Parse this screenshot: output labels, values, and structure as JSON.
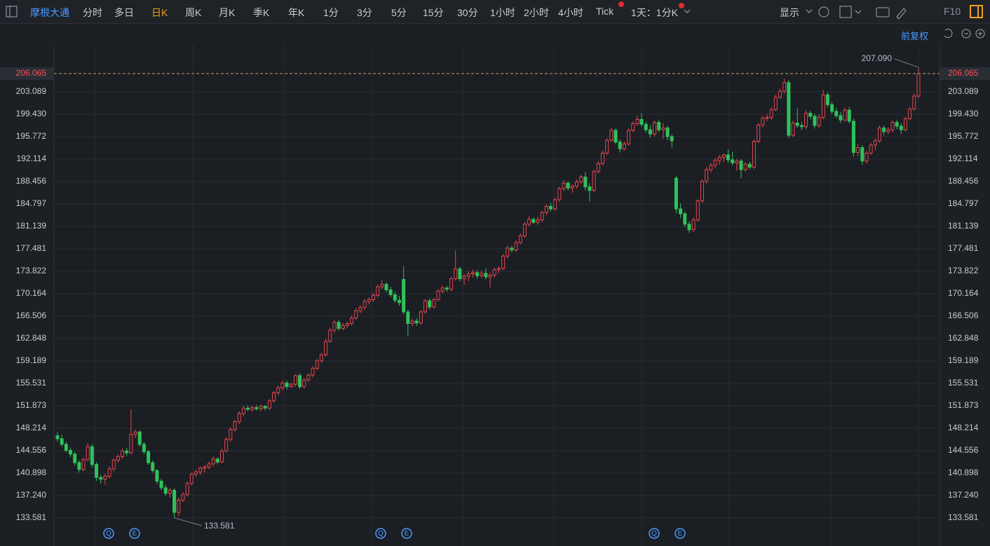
{
  "toolbar": {
    "symbol": "摩根大通",
    "periods": [
      "分时",
      "多日",
      "日K",
      "周K",
      "月K",
      "季K",
      "年K",
      "1分",
      "3分",
      "5分",
      "15分",
      "30分",
      "1小时",
      "2小时",
      "4小时",
      "Tick"
    ],
    "active_period": 2,
    "interval": "1天：1分K",
    "display": "显示",
    "f10": "F10",
    "adjust": "前复权"
  },
  "chart_data": {
    "type": "candlestick",
    "up_color": "#e8474e",
    "down_color": "#2fc25b",
    "grid": true,
    "ylim": [
      130.15,
      210.64
    ],
    "yticks": [
      133.581,
      {
        "value": 137.24,
        "label": "137.240"
      },
      140.898,
      144.556,
      148.214,
      151.873,
      155.531,
      159.189,
      162.848,
      166.506,
      170.164,
      173.822,
      177.481,
      181.139,
      184.797,
      188.456,
      192.114,
      195.772,
      {
        "value": 199.43,
        "label": "199.430"
      },
      203.089
    ],
    "last_price": 206.065,
    "annotations": [
      {
        "value": 207.09,
        "label": "207.090"
      },
      {
        "value": 133.581,
        "label": "133.581"
      }
    ],
    "events": [
      "Q",
      "E",
      "Q",
      "E",
      "Q",
      "E"
    ],
    "ohlc": [
      [
        147.0,
        147.6,
        146.0,
        146.5
      ],
      [
        146.5,
        147.2,
        145.2,
        145.6
      ],
      [
        145.6,
        146.0,
        144.3,
        144.6
      ],
      [
        144.6,
        145.1,
        143.5,
        144.0
      ],
      [
        144.0,
        144.4,
        142.1,
        142.6
      ],
      [
        142.6,
        143.0,
        141.0,
        141.5
      ],
      [
        141.5,
        143.5,
        141.2,
        143.1
      ],
      [
        143.1,
        145.8,
        142.8,
        145.2
      ],
      [
        145.2,
        145.6,
        141.8,
        142.3
      ],
      [
        142.3,
        142.7,
        139.6,
        140.2
      ],
      [
        140.2,
        140.6,
        139.2,
        139.9
      ],
      [
        139.9,
        140.8,
        139.0,
        140.4
      ],
      [
        140.4,
        142.0,
        140.0,
        141.6
      ],
      [
        141.6,
        143.4,
        141.2,
        143.0
      ],
      [
        143.0,
        144.0,
        142.6,
        143.6
      ],
      [
        143.6,
        144.9,
        143.2,
        144.5
      ],
      [
        144.5,
        145.0,
        143.7,
        144.2
      ],
      [
        144.2,
        151.3,
        144.0,
        147.2
      ],
      [
        147.2,
        148.0,
        146.6,
        147.6
      ],
      [
        147.6,
        147.9,
        145.2,
        145.6
      ],
      [
        145.6,
        146.0,
        144.0,
        144.4
      ],
      [
        144.4,
        144.7,
        142.2,
        142.6
      ],
      [
        142.6,
        143.0,
        141.0,
        141.3
      ],
      [
        141.3,
        141.6,
        139.1,
        139.6
      ],
      [
        139.6,
        140.0,
        138.1,
        138.5
      ],
      [
        138.5,
        139.0,
        137.2,
        137.6
      ],
      [
        137.6,
        138.5,
        136.9,
        138.1
      ],
      [
        138.1,
        138.4,
        133.581,
        134.5
      ],
      [
        134.5,
        136.9,
        133.9,
        136.5
      ],
      [
        136.5,
        137.8,
        136.2,
        137.4
      ],
      [
        137.4,
        139.6,
        137.1,
        139.2
      ],
      [
        139.2,
        141.0,
        138.9,
        140.7
      ],
      [
        140.7,
        141.5,
        140.3,
        141.1
      ],
      [
        141.1,
        142.0,
        140.6,
        141.7
      ],
      [
        141.7,
        142.2,
        141.0,
        141.9
      ],
      [
        141.9,
        142.8,
        141.5,
        142.4
      ],
      [
        142.4,
        143.6,
        142.0,
        143.2
      ],
      [
        143.2,
        143.5,
        142.3,
        142.7
      ],
      [
        142.7,
        144.9,
        142.5,
        144.5
      ],
      [
        144.5,
        146.8,
        144.2,
        146.4
      ],
      [
        146.4,
        148.4,
        146.0,
        148.0
      ],
      [
        148.0,
        149.6,
        147.6,
        149.3
      ],
      [
        149.3,
        151.0,
        148.9,
        150.6
      ],
      [
        150.6,
        151.9,
        150.2,
        151.5
      ],
      [
        151.5,
        152.0,
        151.0,
        151.3
      ],
      [
        151.3,
        151.9,
        150.9,
        151.6
      ],
      [
        151.6,
        152.0,
        151.1,
        151.4
      ],
      [
        151.4,
        152.1,
        151.0,
        151.8
      ],
      [
        151.8,
        152.0,
        151.1,
        151.5
      ],
      [
        151.5,
        153.0,
        151.2,
        152.7
      ],
      [
        152.7,
        154.3,
        152.4,
        154.0
      ],
      [
        154.0,
        155.2,
        153.6,
        154.8
      ],
      [
        154.8,
        156.0,
        154.4,
        155.6
      ],
      [
        155.6,
        156.0,
        154.5,
        155.0
      ],
      [
        155.0,
        155.6,
        154.8,
        155.4
      ],
      [
        155.4,
        157.0,
        155.0,
        156.8
      ],
      [
        156.8,
        157.2,
        154.6,
        155.0
      ],
      [
        155.0,
        156.4,
        154.7,
        156.1
      ],
      [
        156.1,
        157.2,
        155.8,
        156.9
      ],
      [
        156.9,
        158.3,
        156.5,
        158.0
      ],
      [
        158.0,
        159.5,
        157.7,
        159.2
      ],
      [
        159.2,
        160.5,
        158.9,
        160.2
      ],
      [
        160.2,
        162.8,
        159.9,
        162.4
      ],
      [
        162.4,
        164.6,
        162.1,
        164.2
      ],
      [
        164.2,
        165.9,
        163.8,
        165.5
      ],
      [
        165.5,
        165.9,
        164.1,
        164.5
      ],
      [
        164.5,
        165.4,
        164.2,
        165.0
      ],
      [
        165.0,
        165.6,
        164.6,
        165.3
      ],
      [
        165.3,
        166.6,
        164.9,
        166.2
      ],
      [
        166.2,
        167.8,
        165.9,
        167.4
      ],
      [
        167.4,
        168.3,
        167.0,
        167.9
      ],
      [
        167.9,
        169.3,
        167.5,
        168.9
      ],
      [
        168.9,
        169.6,
        168.4,
        169.2
      ],
      [
        169.2,
        170.3,
        168.8,
        169.9
      ],
      [
        169.9,
        171.6,
        169.5,
        171.3
      ],
      [
        171.3,
        172.4,
        170.9,
        171.7
      ],
      [
        171.7,
        172.0,
        170.4,
        170.8
      ],
      [
        170.8,
        171.3,
        169.6,
        170.0
      ],
      [
        170.0,
        170.5,
        168.7,
        169.1
      ],
      [
        169.1,
        169.8,
        168.2,
        168.7
      ],
      [
        172.5,
        174.6,
        166.8,
        167.2
      ],
      [
        167.2,
        167.6,
        163.2,
        165.3
      ],
      [
        165.3,
        166.1,
        164.8,
        165.7
      ],
      [
        165.7,
        166.2,
        164.9,
        165.4
      ],
      [
        165.4,
        167.5,
        165.1,
        167.2
      ],
      [
        167.2,
        169.3,
        166.9,
        169.0
      ],
      [
        169.0,
        169.4,
        167.6,
        168.0
      ],
      [
        168.0,
        169.5,
        167.7,
        169.2
      ],
      [
        169.2,
        170.9,
        168.9,
        170.6
      ],
      [
        170.6,
        171.5,
        170.2,
        171.1
      ],
      [
        171.1,
        171.4,
        170.5,
        170.9
      ],
      [
        170.9,
        172.9,
        170.6,
        172.6
      ],
      [
        172.6,
        177.2,
        172.3,
        174.2
      ],
      [
        174.2,
        174.6,
        172.2,
        172.6
      ],
      [
        172.6,
        173.4,
        171.6,
        173.0
      ],
      [
        173.0,
        173.8,
        172.2,
        173.4
      ],
      [
        173.4,
        174.1,
        172.8,
        173.6
      ],
      [
        173.6,
        174.0,
        172.6,
        173.1
      ],
      [
        173.1,
        173.9,
        172.7,
        173.5
      ],
      [
        173.5,
        174.3,
        172.5,
        172.9
      ],
      [
        172.9,
        173.6,
        171.2,
        173.2
      ],
      [
        173.2,
        174.4,
        172.8,
        174.1
      ],
      [
        174.1,
        174.6,
        173.5,
        174.3
      ],
      [
        174.3,
        176.6,
        174.0,
        176.3
      ],
      [
        176.3,
        178.0,
        175.9,
        177.6
      ],
      [
        177.6,
        178.0,
        176.9,
        177.3
      ],
      [
        177.3,
        178.9,
        177.0,
        178.5
      ],
      [
        178.5,
        180.0,
        178.2,
        179.6
      ],
      [
        179.6,
        181.9,
        179.3,
        181.5
      ],
      [
        181.5,
        182.8,
        181.1,
        182.3
      ],
      [
        182.3,
        182.6,
        181.5,
        181.8
      ],
      [
        181.8,
        182.7,
        181.4,
        182.2
      ],
      [
        182.2,
        183.7,
        181.9,
        183.4
      ],
      [
        183.4,
        184.8,
        183.0,
        184.4
      ],
      [
        184.4,
        185.0,
        183.6,
        184.0
      ],
      [
        184.0,
        185.8,
        183.7,
        185.5
      ],
      [
        185.5,
        187.6,
        185.1,
        187.3
      ],
      [
        187.3,
        188.7,
        186.9,
        188.2
      ],
      [
        188.2,
        188.5,
        187.0,
        187.4
      ],
      [
        187.4,
        188.0,
        186.6,
        187.7
      ],
      [
        187.7,
        188.8,
        187.3,
        188.4
      ],
      [
        188.4,
        189.6,
        188.0,
        189.2
      ],
      [
        189.2,
        190.0,
        187.0,
        187.6
      ],
      [
        187.6,
        188.2,
        185.2,
        187.0
      ],
      [
        187.0,
        190.4,
        186.7,
        190.1
      ],
      [
        190.1,
        191.8,
        189.8,
        191.4
      ],
      [
        191.4,
        193.5,
        191.1,
        193.1
      ],
      [
        193.1,
        195.5,
        192.8,
        195.2
      ],
      [
        195.2,
        197.2,
        194.9,
        196.8
      ],
      [
        196.8,
        197.2,
        194.5,
        194.9
      ],
      [
        194.9,
        195.3,
        193.2,
        193.8
      ],
      [
        193.8,
        195.0,
        193.5,
        194.6
      ],
      [
        194.6,
        197.1,
        194.3,
        196.8
      ],
      [
        196.8,
        198.3,
        196.5,
        197.9
      ],
      [
        197.9,
        199.2,
        197.5,
        198.6
      ],
      [
        198.6,
        199.6,
        197.4,
        197.8
      ],
      [
        197.8,
        198.2,
        196.4,
        196.9
      ],
      [
        196.9,
        197.7,
        195.6,
        196.2
      ],
      [
        196.2,
        198.4,
        195.8,
        198.1
      ],
      [
        198.1,
        198.5,
        196.5,
        196.9
      ],
      [
        196.9,
        198.0,
        195.4,
        197.2
      ],
      [
        197.2,
        197.6,
        195.2,
        195.8
      ],
      [
        195.8,
        196.2,
        194.0,
        195.1
      ],
      [
        189.0,
        189.4,
        183.3,
        184.0
      ],
      [
        184.0,
        184.9,
        182.5,
        183.2
      ],
      [
        183.2,
        183.6,
        181.0,
        181.5
      ],
      [
        181.5,
        182.0,
        180.1,
        180.6
      ],
      [
        180.6,
        182.6,
        180.2,
        182.2
      ],
      [
        182.2,
        185.6,
        181.9,
        185.3
      ],
      [
        185.3,
        188.8,
        185.0,
        188.5
      ],
      [
        188.5,
        190.8,
        188.1,
        190.4
      ],
      [
        190.4,
        191.5,
        189.9,
        191.1
      ],
      [
        191.1,
        192.3,
        190.6,
        191.9
      ],
      [
        191.9,
        192.8,
        191.2,
        192.4
      ],
      [
        192.4,
        193.0,
        191.6,
        192.8
      ],
      [
        192.8,
        193.7,
        191.5,
        192.0
      ],
      [
        192.0,
        193.3,
        191.1,
        191.5
      ],
      [
        191.5,
        192.2,
        190.2,
        191.8
      ],
      [
        191.8,
        192.1,
        189.0,
        190.4
      ],
      [
        190.4,
        191.6,
        190.0,
        191.3
      ],
      [
        191.3,
        191.7,
        190.4,
        190.8
      ],
      [
        190.8,
        195.3,
        190.5,
        195.0
      ],
      [
        195.0,
        198.0,
        194.7,
        197.7
      ],
      [
        197.7,
        199.2,
        197.3,
        198.8
      ],
      [
        198.8,
        199.5,
        198.3,
        198.9
      ],
      [
        198.9,
        200.6,
        198.5,
        200.2
      ],
      [
        200.2,
        202.6,
        199.9,
        202.2
      ],
      [
        202.2,
        203.6,
        201.9,
        203.2
      ],
      [
        203.2,
        205.2,
        202.8,
        204.6
      ],
      [
        204.6,
        205.0,
        195.6,
        196.0
      ],
      [
        196.0,
        198.4,
        195.7,
        198.0
      ],
      [
        198.0,
        200.4,
        197.2,
        197.6
      ],
      [
        197.6,
        198.2,
        196.8,
        197.4
      ],
      [
        197.4,
        200.1,
        197.0,
        199.6
      ],
      [
        199.6,
        200.0,
        198.6,
        199.1
      ],
      [
        199.1,
        199.5,
        197.1,
        197.6
      ],
      [
        197.6,
        199.4,
        197.2,
        198.9
      ],
      [
        198.9,
        203.4,
        198.6,
        202.6
      ],
      [
        202.6,
        203.0,
        200.6,
        201.0
      ],
      [
        201.0,
        201.4,
        199.5,
        199.9
      ],
      [
        199.9,
        200.5,
        198.8,
        199.2
      ],
      [
        199.2,
        199.8,
        198.0,
        198.5
      ],
      [
        198.5,
        200.5,
        198.2,
        200.1
      ],
      [
        200.1,
        200.6,
        197.9,
        198.3
      ],
      [
        198.3,
        198.7,
        192.5,
        193.2
      ],
      [
        193.2,
        194.6,
        192.6,
        194.0
      ],
      [
        194.0,
        194.4,
        191.2,
        191.8
      ],
      [
        191.8,
        193.5,
        191.3,
        193.1
      ],
      [
        193.1,
        194.8,
        192.8,
        194.4
      ],
      [
        194.4,
        195.5,
        193.5,
        195.1
      ],
      [
        195.1,
        197.6,
        194.8,
        197.2
      ],
      [
        197.2,
        197.6,
        196.0,
        196.6
      ],
      [
        196.6,
        197.3,
        196.2,
        196.9
      ],
      [
        196.9,
        198.4,
        196.5,
        198.1
      ],
      [
        198.1,
        198.5,
        197.0,
        197.5
      ],
      [
        197.5,
        198.0,
        196.2,
        196.9
      ],
      [
        196.9,
        199.0,
        196.6,
        198.7
      ],
      [
        198.7,
        200.6,
        198.4,
        200.3
      ],
      [
        200.3,
        202.8,
        200.0,
        202.4
      ],
      [
        202.4,
        207.09,
        202.1,
        206.065
      ]
    ]
  }
}
